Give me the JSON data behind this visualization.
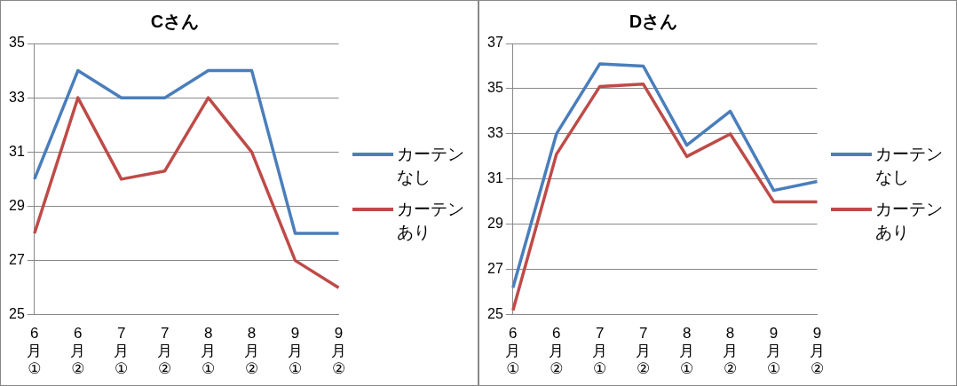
{
  "chart_data": [
    {
      "type": "line",
      "title": "Cさん",
      "categories": [
        "6月①",
        "6月②",
        "7月①",
        "7月②",
        "8月①",
        "8月②",
        "9月①",
        "9月②"
      ],
      "series": [
        {
          "name": "カーテンなし",
          "color": "#4a7ebb",
          "values": [
            30,
            34,
            33,
            33,
            34,
            34,
            28,
            28
          ]
        },
        {
          "name": "カーテンあり",
          "color": "#be4b48",
          "values": [
            28,
            33,
            30,
            30.3,
            33,
            31,
            27,
            26
          ]
        }
      ],
      "ylim": [
        25,
        35
      ],
      "yticks": [
        25,
        27,
        29,
        31,
        33,
        35
      ],
      "grid": "y",
      "legend": "right",
      "marker": "none",
      "line_style": "solid"
    },
    {
      "type": "line",
      "title": "Dさん",
      "categories": [
        "6月①",
        "6月②",
        "7月①",
        "7月②",
        "8月①",
        "8月②",
        "9月①",
        "9月②"
      ],
      "series": [
        {
          "name": "カーテンなし",
          "color": "#4a7ebb",
          "values": [
            26.2,
            33,
            36.1,
            36,
            32.5,
            34,
            30.5,
            30.9
          ]
        },
        {
          "name": "カーテンあり",
          "color": "#be4b48",
          "values": [
            25.2,
            32.1,
            35.1,
            35.2,
            32,
            33,
            30,
            30
          ]
        }
      ],
      "ylim": [
        25,
        37
      ],
      "yticks": [
        25,
        27,
        29,
        31,
        33,
        35,
        37
      ],
      "grid": "y",
      "legend": "right",
      "marker": "none",
      "line_style": "solid"
    }
  ]
}
